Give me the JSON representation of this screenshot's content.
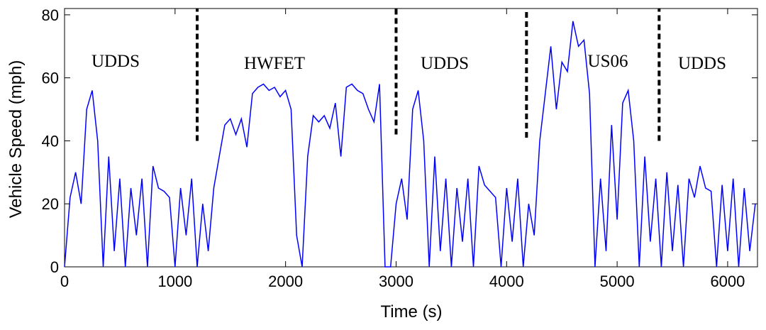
{
  "chart_data": {
    "type": "line",
    "xlabel": "Time (s)",
    "ylabel": "Vehicle Speed (mph)",
    "x": [
      0,
      50,
      100,
      150,
      200,
      250,
      300,
      350,
      400,
      450,
      500,
      550,
      600,
      650,
      700,
      750,
      800,
      850,
      900,
      950,
      1000,
      1050,
      1100,
      1150,
      1200,
      1250,
      1300,
      1350,
      1400,
      1450,
      1500,
      1550,
      1600,
      1650,
      1700,
      1750,
      1800,
      1850,
      1900,
      1950,
      2000,
      2050,
      2100,
      2150,
      2200,
      2250,
      2300,
      2350,
      2400,
      2450,
      2500,
      2550,
      2600,
      2650,
      2700,
      2750,
      2800,
      2850,
      2900,
      2950,
      3000,
      3050,
      3100,
      3150,
      3200,
      3250,
      3300,
      3350,
      3400,
      3450,
      3500,
      3550,
      3600,
      3650,
      3700,
      3750,
      3800,
      3850,
      3900,
      3950,
      4000,
      4050,
      4100,
      4150,
      4200,
      4250,
      4300,
      4350,
      4400,
      4450,
      4500,
      4550,
      4600,
      4650,
      4700,
      4750,
      4800,
      4850,
      4900,
      4950,
      5000,
      5050,
      5100,
      5150,
      5200,
      5250,
      5300,
      5350,
      5400,
      5450,
      5500,
      5550,
      5600,
      5650,
      5700,
      5750,
      5800,
      5850,
      5900,
      5950,
      6000,
      6050,
      6100,
      6150,
      6200,
      6250
    ],
    "series": [
      {
        "color": "#0000ff",
        "values": [
          0,
          22,
          30,
          20,
          50,
          56,
          40,
          0,
          35,
          5,
          28,
          0,
          25,
          10,
          28,
          0,
          32,
          25,
          24,
          22,
          0,
          25,
          10,
          28,
          0,
          20,
          5,
          25,
          35,
          45,
          47,
          42,
          47,
          38,
          55,
          57,
          58,
          56,
          57,
          54,
          56,
          50,
          10,
          0,
          35,
          48,
          46,
          48,
          44,
          52,
          35,
          57,
          58,
          56,
          55,
          50,
          46,
          58,
          0,
          0,
          20,
          28,
          15,
          50,
          56,
          40,
          0,
          35,
          5,
          28,
          0,
          25,
          8,
          28,
          0,
          32,
          26,
          24,
          22,
          0,
          25,
          8,
          28,
          0,
          20,
          10,
          40,
          55,
          70,
          50,
          65,
          62,
          78,
          70,
          72,
          55,
          0,
          28,
          5,
          45,
          15,
          52,
          56,
          40,
          0,
          35,
          8,
          28,
          0,
          30,
          5,
          26,
          0,
          28,
          22,
          32,
          25,
          24,
          0,
          26,
          5,
          28,
          0,
          25,
          5,
          20
        ]
      }
    ],
    "xlim": [
      0,
      6270
    ],
    "ylim": [
      0,
      82
    ],
    "xticks": [
      0,
      1000,
      2000,
      3000,
      4000,
      5000,
      6000
    ],
    "yticks": [
      0,
      20,
      40,
      60,
      80
    ],
    "annotations": [
      "UDDS",
      "HWFET",
      "UDDS",
      "US06",
      "UDDS"
    ],
    "dividers": [
      {
        "x": 1200,
        "y": [
          40,
          82
        ]
      },
      {
        "x": 3000,
        "y": [
          42,
          82
        ]
      },
      {
        "x": 4180,
        "y": [
          41,
          82
        ]
      },
      {
        "x": 5380,
        "y": [
          40,
          82
        ]
      }
    ]
  }
}
